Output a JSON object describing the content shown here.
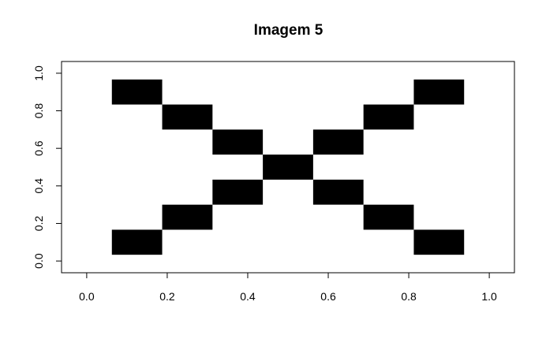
{
  "chart_data": {
    "type": "heatmap",
    "title": "Imagem 5",
    "xlabel": "",
    "ylabel": "",
    "xlim": [
      -0.0625,
      1.0625
    ],
    "ylim": [
      -0.0625,
      1.0625
    ],
    "x_centers": [
      0.125,
      0.25,
      0.375,
      0.5,
      0.625,
      0.75,
      0.875
    ],
    "y_centers": [
      0.1,
      0.2333,
      0.3667,
      0.5,
      0.6333,
      0.7667,
      0.9
    ],
    "x_ticks": [
      {
        "value": 0.0,
        "label": "0.0"
      },
      {
        "value": 0.2,
        "label": "0.2"
      },
      {
        "value": 0.4,
        "label": "0.4"
      },
      {
        "value": 0.6,
        "label": "0.6"
      },
      {
        "value": 0.8,
        "label": "0.8"
      },
      {
        "value": 1.0,
        "label": "1.0"
      }
    ],
    "y_ticks": [
      {
        "value": 0.0,
        "label": "0.0"
      },
      {
        "value": 0.2,
        "label": "0.2"
      },
      {
        "value": 0.4,
        "label": "0.4"
      },
      {
        "value": 0.6,
        "label": "0.6"
      },
      {
        "value": 0.8,
        "label": "0.8"
      },
      {
        "value": 1.0,
        "label": "1.0"
      }
    ],
    "cells": [
      {
        "x": 0.125,
        "y": 0.9,
        "value": 1
      },
      {
        "x": 0.875,
        "y": 0.9,
        "value": 1
      },
      {
        "x": 0.25,
        "y": 0.7667,
        "value": 1
      },
      {
        "x": 0.75,
        "y": 0.7667,
        "value": 1
      },
      {
        "x": 0.375,
        "y": 0.6333,
        "value": 1
      },
      {
        "x": 0.625,
        "y": 0.6333,
        "value": 1
      },
      {
        "x": 0.5,
        "y": 0.5,
        "value": 1
      },
      {
        "x": 0.375,
        "y": 0.3667,
        "value": 1
      },
      {
        "x": 0.625,
        "y": 0.3667,
        "value": 1
      },
      {
        "x": 0.25,
        "y": 0.2333,
        "value": 1
      },
      {
        "x": 0.75,
        "y": 0.2333,
        "value": 1
      },
      {
        "x": 0.125,
        "y": 0.1,
        "value": 1
      },
      {
        "x": 0.875,
        "y": 0.1,
        "value": 1
      }
    ],
    "cell_width": 0.125,
    "cell_height": 0.1333,
    "colors": {
      "filled": "#000000",
      "empty": "#ffffff",
      "frame": "#000000"
    },
    "grid": false,
    "legend": "none"
  }
}
